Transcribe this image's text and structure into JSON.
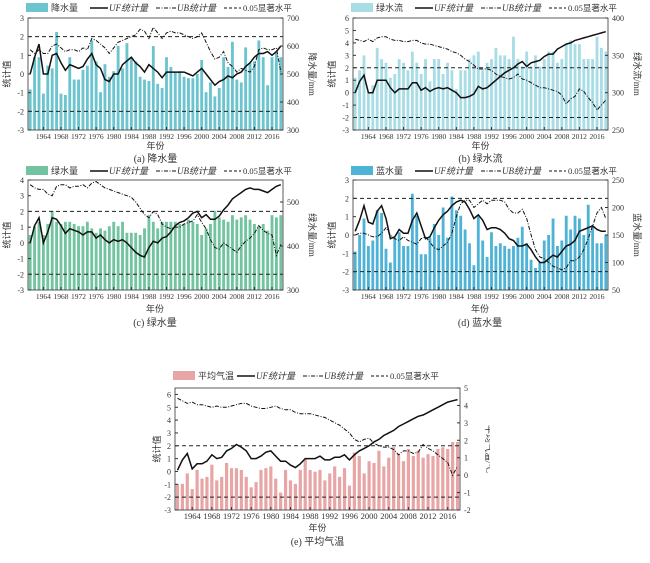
{
  "legend_labels": {
    "uf": "UF统计量",
    "ub": "UB统计量",
    "sig": "0.05显著水平"
  },
  "chart_data": [
    {
      "id": "a",
      "type": "bar+line",
      "caption": "(a) 降水量",
      "bar_label": "降水量",
      "bar_color": "#6cc4cf",
      "xlabel": "年份",
      "ylabel": "统计值",
      "y2label": "降水量/mm",
      "x_start": 1961,
      "x_ticks": [
        1964,
        1968,
        1972,
        1976,
        1980,
        1984,
        1988,
        1992,
        1996,
        2000,
        2004,
        2008,
        2012,
        2016
      ],
      "ylim": [
        -3,
        3
      ],
      "y_ticks": [
        -3,
        -2,
        -1,
        0,
        1,
        2,
        3
      ],
      "y2lim": [
        300,
        700
      ],
      "y2_ticks": [
        300,
        400,
        500,
        600,
        700
      ],
      "significance": [
        2,
        -2
      ],
      "bars": [
        445,
        560,
        560,
        430,
        530,
        520,
        650,
        430,
        425,
        560,
        480,
        480,
        515,
        530,
        620,
        545,
        435,
        535,
        490,
        510,
        600,
        520,
        610,
        560,
        545,
        490,
        480,
        475,
        600,
        465,
        450,
        560,
        525,
        505,
        510,
        490,
        485,
        485,
        500,
        550,
        435,
        470,
        420,
        450,
        560,
        525,
        615,
        480,
        470,
        595,
        540,
        545,
        620,
        560,
        460,
        560,
        575,
        560
      ],
      "uf": [
        0,
        0.9,
        1.6,
        0,
        0,
        1,
        1.1,
        0.6,
        0.2,
        0.5,
        0.4,
        0.3,
        0.4,
        0.8,
        1.1,
        0.5,
        0.3,
        -0.3,
        -0.4,
        0,
        0,
        0.5,
        0.7,
        0.9,
        0.6,
        0.4,
        0.1,
        0.5,
        0.3,
        0.1,
        -0.2,
        0.1,
        0.1,
        0.1,
        0.1,
        0.1,
        0,
        -0.1,
        0.1,
        0.3,
        0,
        -0.3,
        -0.6,
        -0.4,
        -0.3,
        -0.1,
        -0.2,
        0,
        0.1,
        0.4,
        0.6,
        0.9,
        1.1,
        1.1,
        1.2,
        1,
        1.2,
        1.5
      ],
      "ub": [
        1.3,
        1.1,
        1.3,
        1.1,
        1.1,
        1.5,
        1.6,
        1.4,
        1.2,
        1.3,
        1.3,
        1.2,
        1.4,
        1.3,
        1.9,
        1.8,
        1.6,
        1.4,
        1.1,
        1.4,
        1.7,
        1.8,
        1.9,
        2.0,
        2.1,
        2.4,
        2.3,
        1.9,
        2.5,
        2.2,
        1.9,
        2.2,
        2.3,
        2.2,
        2.2,
        2.1,
        2.0,
        1.9,
        2.0,
        2.2,
        1.7,
        1.2,
        0.8,
        0.9,
        1.2,
        0.6,
        0.4,
        0.1,
        0.3,
        0.2,
        0.1,
        0.4,
        1.3,
        1.4,
        1.3,
        1.3,
        1.4,
        0.1
      ]
    },
    {
      "id": "b",
      "type": "bar+line",
      "caption": "(b) 绿水流",
      "bar_label": "绿水流",
      "bar_color": "#a9dde6",
      "xlabel": "年份",
      "ylabel": "统计值",
      "y2label": "绿水流/mm",
      "x_start": 1961,
      "x_ticks": [
        1964,
        1968,
        1972,
        1976,
        1980,
        1984,
        1988,
        1992,
        1996,
        2000,
        2004,
        2008,
        2012,
        2016
      ],
      "ylim": [
        -3,
        6
      ],
      "y_ticks": [
        -3,
        -2,
        -1,
        0,
        1,
        2,
        3,
        4,
        5,
        6
      ],
      "y2lim": [
        250,
        400
      ],
      "y2_ticks": [
        250,
        300,
        350,
        400
      ],
      "significance": [
        2,
        -2
      ],
      "bars": [
        320,
        330,
        350,
        300,
        310,
        360,
        345,
        340,
        320,
        325,
        345,
        340,
        330,
        355,
        340,
        325,
        345,
        315,
        345,
        345,
        325,
        340,
        330,
        305,
        330,
        330,
        345,
        350,
        355,
        330,
        340,
        345,
        360,
        350,
        350,
        345,
        375,
        345,
        335,
        355,
        335,
        350,
        335,
        345,
        355,
        355,
        340,
        345,
        365,
        370,
        365,
        365,
        345,
        345,
        345,
        375,
        360,
        355
      ],
      "uf": [
        0,
        0.9,
        1.4,
        0,
        0,
        1,
        1,
        1,
        0.4,
        0,
        0.3,
        0.3,
        0.3,
        0.8,
        0.8,
        0.2,
        0.4,
        0.1,
        0.3,
        0.4,
        0.3,
        0.4,
        0.2,
        0,
        -0.4,
        -0.4,
        -0.3,
        -0.1,
        0.5,
        0.3,
        0.4,
        0.7,
        1,
        1.3,
        1.6,
        1.8,
        2,
        2.3,
        2.5,
        2.1,
        2.4,
        2.5,
        2.6,
        2.9,
        3.1,
        3.1,
        3.5,
        3.7,
        3.9,
        4.0,
        4.2,
        4.3,
        4.4,
        4.5,
        4.6,
        4.7,
        4.8,
        4.9
      ],
      "ub": [
        4.3,
        4.2,
        4.1,
        4.3,
        4.1,
        4.4,
        4.5,
        4.5,
        4.3,
        4.2,
        4.2,
        4.1,
        4.1,
        4.2,
        4.2,
        4.0,
        3.9,
        3.9,
        3.8,
        3.7,
        3.6,
        3.5,
        3.3,
        3.2,
        3.0,
        2.7,
        2.5,
        2.2,
        1.9,
        1.9,
        1.9,
        1.8,
        1.5,
        1.3,
        1.2,
        1.1,
        1.2,
        1.5,
        1.1,
        1.0,
        0.8,
        0.6,
        0.4,
        0.4,
        0.3,
        0.2,
        0.1,
        -0.2,
        -0.9,
        -0.5,
        -0.3,
        0.3,
        0.1,
        -0.4,
        -0.8,
        -1.4,
        -1.0,
        -0.6
      ]
    },
    {
      "id": "c",
      "type": "bar+line",
      "caption": "(c) 绿水量",
      "bar_label": "绿水量",
      "bar_color": "#72c39f",
      "xlabel": "年份",
      "ylabel": "统计值",
      "y2label": "绿水量/mm",
      "x_start": 1961,
      "x_ticks": [
        1964,
        1968,
        1972,
        1976,
        1980,
        1984,
        1988,
        1992,
        1996,
        2000,
        2004,
        2008,
        2012,
        2016
      ],
      "ylim": [
        -3,
        4
      ],
      "y_ticks": [
        -3,
        -2,
        -1,
        0,
        1,
        2,
        3,
        4
      ],
      "y2lim": [
        300,
        550
      ],
      "y2_ticks": [
        300,
        400,
        500
      ],
      "significance": [
        2,
        -2
      ],
      "bars": [
        425,
        445,
        455,
        425,
        450,
        480,
        455,
        450,
        455,
        455,
        450,
        445,
        445,
        455,
        440,
        430,
        440,
        435,
        445,
        455,
        445,
        455,
        430,
        430,
        430,
        425,
        440,
        470,
        455,
        440,
        455,
        455,
        455,
        455,
        450,
        450,
        460,
        455,
        450,
        425,
        440,
        450,
        480,
        465,
        460,
        455,
        470,
        460,
        465,
        470,
        460,
        450,
        445,
        450,
        435,
        470,
        465,
        470
      ],
      "uf": [
        0,
        1.1,
        1.6,
        0,
        0.7,
        1.6,
        1.5,
        1.1,
        0.6,
        0.9,
        0.8,
        0.7,
        0.5,
        0.7,
        0.7,
        0.3,
        0.5,
        0.2,
        0,
        0.2,
        0.1,
        0.2,
        0,
        -0.3,
        -0.6,
        -0.8,
        -0.9,
        -0.3,
        0.1,
        0,
        0.3,
        0.4,
        0.7,
        1.1,
        1.3,
        1.4,
        1.6,
        1.9,
        2.0,
        1.6,
        1.8,
        1.5,
        1.5,
        1.7,
        2.1,
        2.4,
        2.8,
        3.0,
        3.2,
        3.4,
        3.5,
        3.4,
        3.4,
        3.3,
        3.2,
        3.4,
        3.6,
        3.7
      ],
      "ub": [
        3.7,
        3.5,
        3.4,
        3.4,
        3.1,
        3.0,
        3.6,
        3.7,
        3.7,
        3.5,
        3.6,
        3.6,
        3.7,
        3.5,
        3.8,
        3.9,
        3.7,
        3.5,
        3.4,
        3.3,
        3.2,
        3.1,
        3.0,
        2.9,
        2.6,
        2.2,
        1.8,
        1.6,
        2.0,
        1.8,
        1.2,
        1.0,
        0.9,
        1.0,
        1.0,
        1.2,
        1.3,
        1.4,
        1.8,
        1.3,
        0.9,
        0.2,
        -0.3,
        -0.4,
        0,
        -0.2,
        -0.4,
        -0.6,
        -0.2,
        0.1,
        0.3,
        0.6,
        1.1,
        0.8,
        0.6,
        0.5,
        -0.8,
        -0.1
      ]
    },
    {
      "id": "d",
      "type": "bar+line",
      "caption": "(d) 蓝水量",
      "bar_label": "蓝水量",
      "bar_color": "#4fb3d6",
      "xlabel": "年份",
      "ylabel": "统计值",
      "y2label": "蓝水量/mm",
      "x_start": 1961,
      "x_ticks": [
        1964,
        1968,
        1972,
        1976,
        1980,
        1984,
        1988,
        1992,
        1996,
        2000,
        2004,
        2008,
        2012,
        2016
      ],
      "ylim": [
        -3,
        3
      ],
      "y_ticks": [
        -3,
        -2,
        -1,
        0,
        1,
        2,
        3
      ],
      "y2lim": [
        50,
        250
      ],
      "y2_ticks": [
        50,
        100,
        150,
        200,
        250
      ],
      "significance": [
        2,
        -2
      ],
      "bars": [
        120,
        150,
        180,
        130,
        140,
        195,
        190,
        125,
        100,
        145,
        155,
        130,
        130,
        225,
        185,
        115,
        115,
        145,
        170,
        150,
        200,
        145,
        220,
        195,
        185,
        160,
        135,
        95,
        185,
        140,
        110,
        155,
        130,
        135,
        130,
        125,
        130,
        145,
        165,
        135,
        105,
        90,
        100,
        140,
        150,
        180,
        130,
        140,
        185,
        160,
        185,
        180,
        150,
        205,
        165,
        135,
        135,
        150
      ],
      "uf": [
        0.2,
        0.8,
        1.6,
        0.7,
        0.6,
        1.3,
        1.6,
        0.9,
        -0.2,
        -0.1,
        0.3,
        0.1,
        0.1,
        0.8,
        1.2,
        0.5,
        -0.2,
        -0.1,
        0.4,
        0.8,
        1.1,
        1.3,
        1.6,
        1.8,
        1.9,
        1.8,
        1.4,
        0.9,
        1.1,
        0.8,
        0.3,
        0.4,
        0.4,
        0.3,
        0.1,
        -0.2,
        -0.3,
        -0.6,
        -0.6,
        -0.5,
        -0.8,
        -1.2,
        -1.5,
        -1.5,
        -1.3,
        -1.1,
        -1.2,
        -0.9,
        -0.6,
        -0.5,
        -0.3,
        0.2,
        0.3,
        0.4,
        0.5,
        0.3,
        0.2,
        0.2
      ],
      "ub": [
        0,
        0.1,
        0.1,
        0,
        -0.1,
        -0.1,
        0.1,
        0.4,
        0,
        -0.2,
        -0.3,
        -0.1,
        -0.3,
        -0.4,
        -0.5,
        -0.2,
        -0.1,
        -0.4,
        -0.7,
        -0.8,
        -0.6,
        -0.4,
        0.1,
        1.0,
        1.7,
        1.9,
        1.9,
        1.5,
        1.7,
        1.9,
        1.7,
        1.9,
        1.9,
        1.9,
        1.8,
        1.4,
        1.2,
        1.2,
        1.4,
        0.9,
        0.0,
        -0.8,
        -1.2,
        -1.3,
        -1.5,
        -1.7,
        -1.8,
        -1.9,
        -1.8,
        -1.4,
        -1.4,
        -1.2,
        -0.8,
        -0.2,
        0.5,
        1.2,
        1.5,
        0.9
      ]
    },
    {
      "id": "e",
      "type": "bar+line",
      "caption": "(e) 平均气温",
      "bar_label": "平均气温",
      "bar_color": "#e8a5a5",
      "xlabel": "年份",
      "ylabel": "统计值",
      "y2label": "平均气温/°C",
      "x_start": 1961,
      "x_ticks": [
        1964,
        1968,
        1972,
        1976,
        1980,
        1984,
        1988,
        1992,
        1996,
        2000,
        2004,
        2008,
        2012,
        2016
      ],
      "ylim": [
        -3,
        6.5
      ],
      "y_ticks": [
        -3,
        -2,
        -1,
        0,
        1,
        2,
        3,
        4,
        5,
        6
      ],
      "y2lim": [
        -2,
        5
      ],
      "y2_ticks": [
        -2,
        -1,
        0,
        1,
        2,
        3,
        4,
        5
      ],
      "significance": [
        2,
        -2
      ],
      "bars": [
        -0.5,
        -0.5,
        0.1,
        -0.8,
        0.3,
        -0.2,
        -0.1,
        0.6,
        -0.3,
        -0.1,
        0.7,
        0.4,
        0.4,
        0.3,
        -0.1,
        -0.7,
        -0.4,
        0.3,
        0.4,
        0.5,
        -0.2,
        -1.0,
        0.3,
        -0.3,
        -0.5,
        0.3,
        0.9,
        0.3,
        0.2,
        0.3,
        -0.3,
        0.1,
        0.5,
        -0.1,
        0.4,
        -0.6,
        1.3,
        1.1,
        0.1,
        0.8,
        0.7,
        1.4,
        0.5,
        1.0,
        1.6,
        1.2,
        0.8,
        1.5,
        1.1,
        1.4,
        1.0,
        1.2,
        1.1,
        1.5,
        1.6,
        1.5,
        1.9,
        1.9
      ],
      "uf": [
        0.1,
        0.9,
        1.4,
        0.2,
        0.6,
        0.6,
        0.8,
        1.3,
        1.0,
        1.1,
        1.6,
        1.8,
        2.1,
        1.9,
        1.6,
        1.0,
        1.0,
        1.2,
        1.5,
        1.6,
        1.2,
        0.8,
        0.8,
        0.5,
        0.3,
        0.6,
        1.0,
        1.0,
        1.0,
        1.2,
        0.9,
        0.9,
        1.1,
        1.1,
        1.3,
        0.9,
        1.3,
        1.6,
        1.8,
        2.0,
        2.3,
        2.5,
        2.8,
        3.0,
        3.2,
        3.5,
        3.7,
        3.9,
        4.1,
        4.3,
        4.4,
        4.6,
        4.8,
        5.0,
        5.2,
        5.4,
        5.5,
        5.6
      ],
      "ub": [
        5.7,
        5.5,
        5.3,
        5.4,
        5.2,
        5.2,
        5.1,
        5.0,
        5.1,
        5.0,
        5.0,
        5.1,
        5.2,
        5.3,
        5.3,
        5.1,
        5.0,
        4.9,
        4.9,
        5.0,
        5.1,
        4.9,
        4.8,
        4.8,
        4.6,
        4.5,
        4.5,
        4.5,
        4.4,
        4.3,
        4.2,
        4.0,
        3.8,
        3.6,
        3.3,
        3.0,
        2.5,
        2.3,
        2.5,
        2.6,
        2.2,
        2.0,
        1.9,
        1.9,
        1.7,
        1.3,
        1.6,
        1.6,
        1.4,
        1.5,
        2.1,
        1.8,
        1.6,
        1.3,
        1.0,
        0.7,
        -0.3,
        0.4
      ]
    }
  ]
}
